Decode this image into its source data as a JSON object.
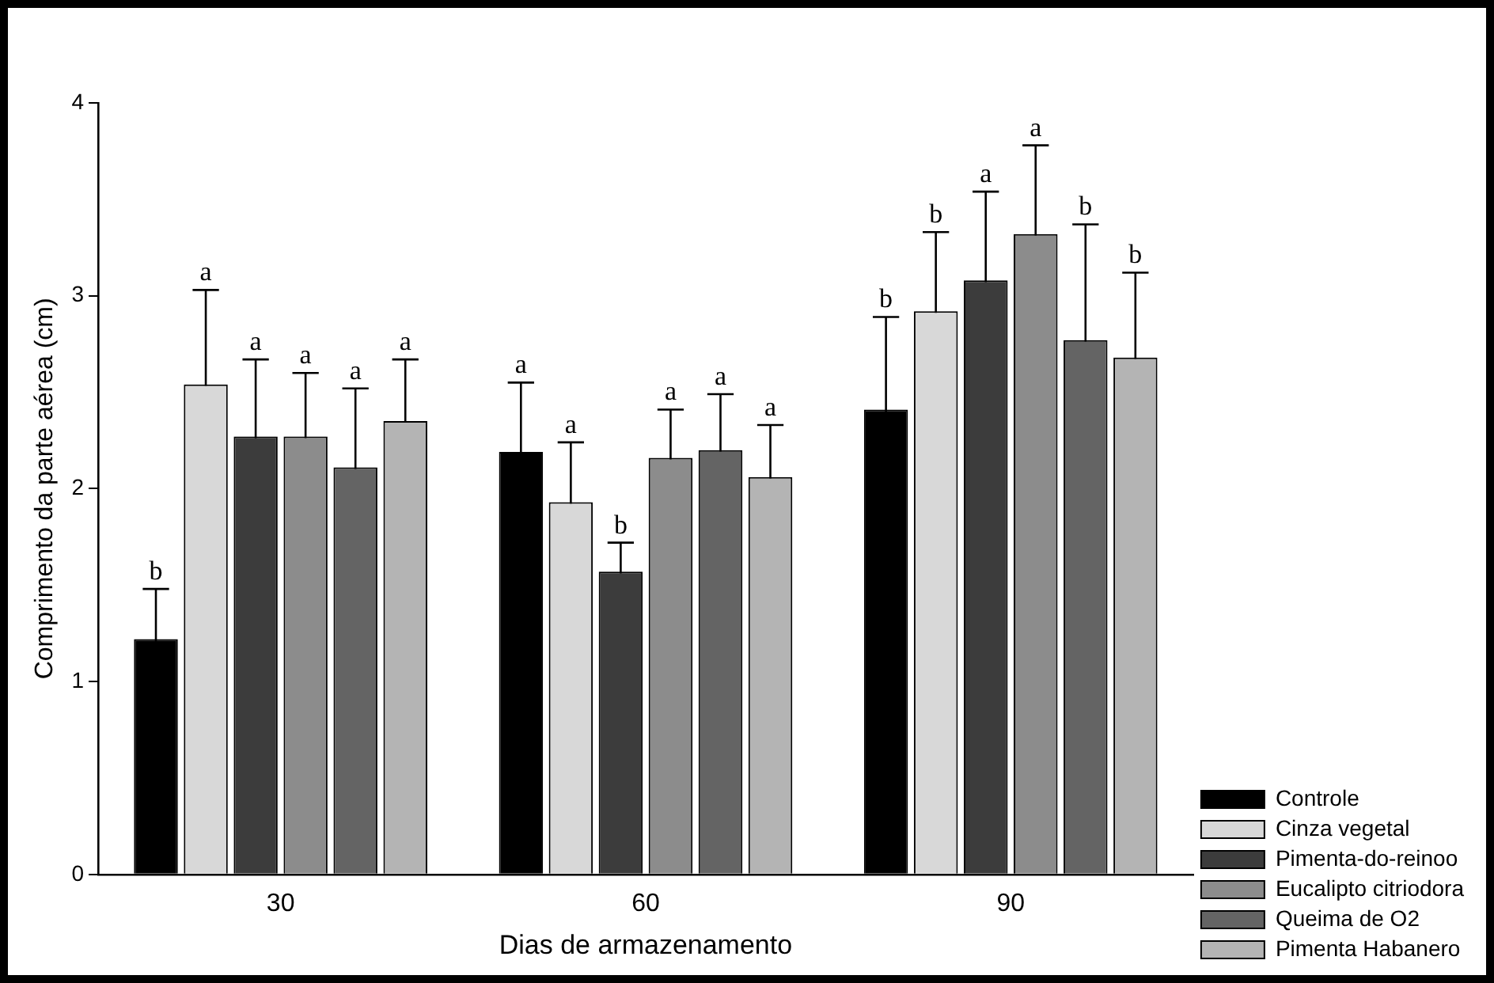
{
  "chart_data": {
    "type": "bar",
    "xlabel": "Dias de armazenamento",
    "ylabel": "Comprimento da parte aérea (cm)",
    "categories": [
      "30",
      "60",
      "90"
    ],
    "series": [
      {
        "name": "Controle",
        "color": "#000000",
        "values": [
          1.22,
          2.19,
          2.41
        ],
        "errors": [
          0.26,
          0.36,
          0.48
        ]
      },
      {
        "name": "Cinza vegetal",
        "color": "#d8d8d8",
        "values": [
          2.54,
          1.93,
          2.92
        ],
        "errors": [
          0.49,
          0.31,
          0.41
        ]
      },
      {
        "name": "Pimenta-do-reinoo",
        "color": "#3c3c3c",
        "values": [
          2.27,
          1.57,
          3.08
        ],
        "errors": [
          0.4,
          0.15,
          0.46
        ]
      },
      {
        "name": "Eucalipto citriodora",
        "color": "#8c8c8c",
        "values": [
          2.27,
          2.16,
          3.32
        ],
        "errors": [
          0.33,
          0.25,
          0.46
        ]
      },
      {
        "name": "Queima de O2",
        "color": "#646464",
        "values": [
          2.11,
          2.2,
          2.77
        ],
        "errors": [
          0.41,
          0.29,
          0.6
        ]
      },
      {
        "name": "Pimenta Habanero",
        "color": "#b4b4b4",
        "values": [
          2.35,
          2.06,
          2.68
        ],
        "errors": [
          0.32,
          0.27,
          0.44
        ]
      }
    ],
    "ylim": [
      0,
      4
    ],
    "yticks": [
      0,
      1,
      2,
      3,
      4
    ],
    "grid": false,
    "legend": "bottom right",
    "annotations": [
      "b",
      "a",
      "a",
      "a",
      "a",
      "a",
      "a",
      "a",
      "b",
      "a",
      "a",
      "a",
      "b",
      "b",
      "a",
      "a",
      "b",
      "b"
    ]
  }
}
